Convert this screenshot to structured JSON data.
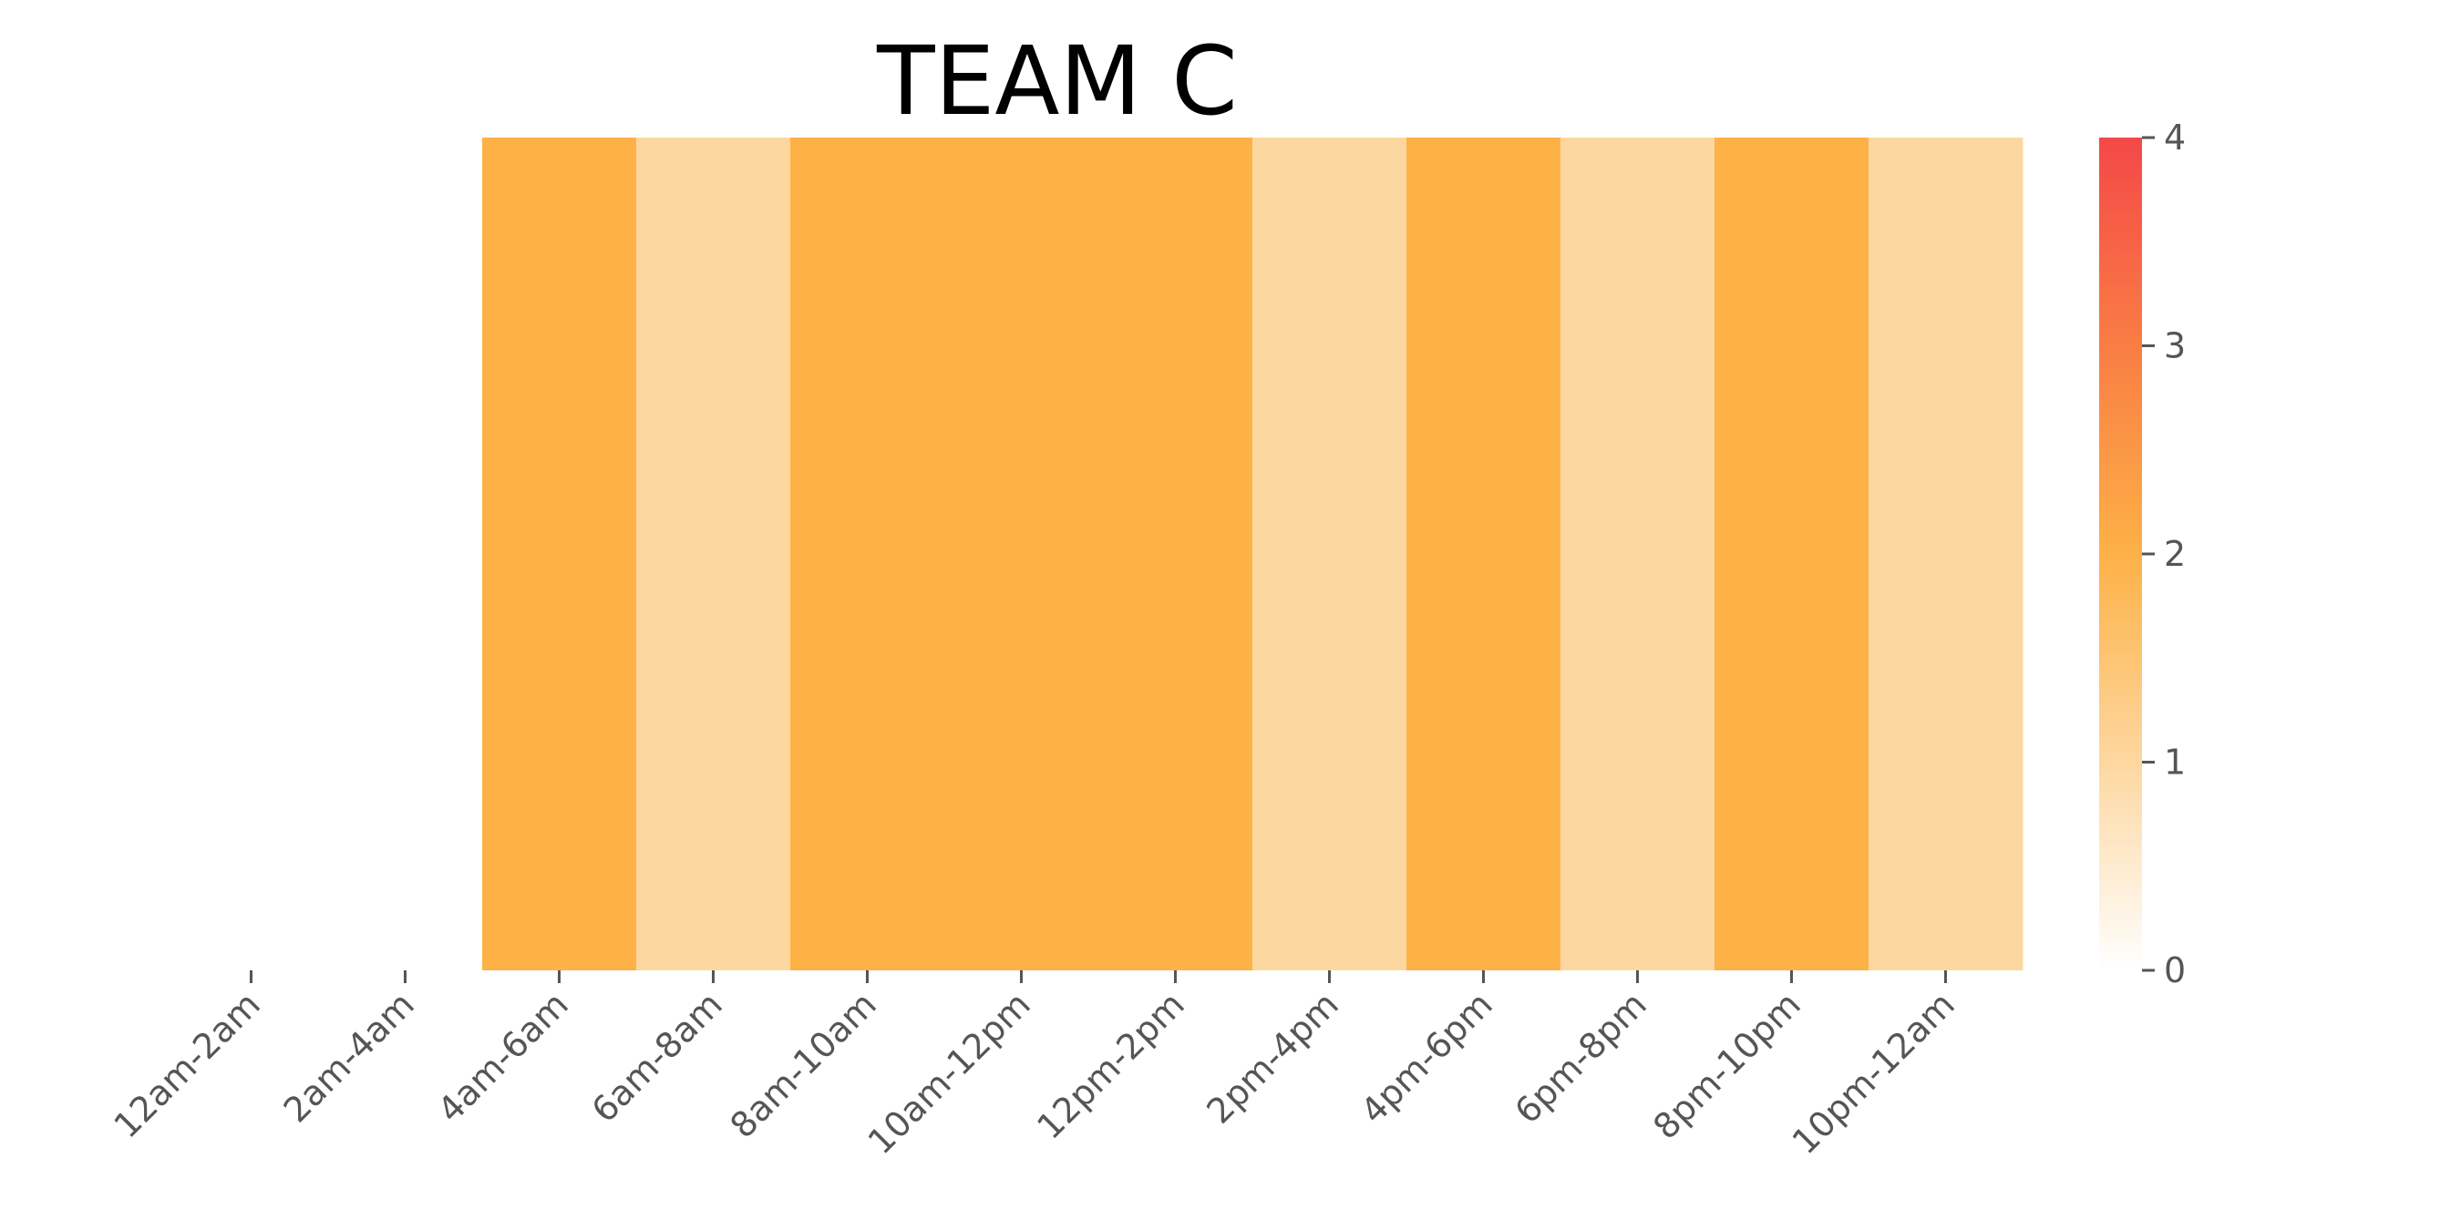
{
  "chart_data": {
    "type": "heatmap",
    "title": "TEAM C",
    "xlabel": "",
    "ylabel": "",
    "categories": [
      "12am-2am",
      "2am-4am",
      "4am-6am",
      "6am-8am",
      "8am-10am",
      "10am-12pm",
      "12pm-2pm",
      "2pm-4pm",
      "4pm-6pm",
      "6pm-8pm",
      "8pm-10pm",
      "10pm-12am"
    ],
    "values": [
      null,
      null,
      2,
      1,
      2,
      2,
      2,
      1,
      2,
      1,
      2,
      1
    ],
    "colorbar": {
      "range": [
        0,
        4
      ],
      "ticks": [
        "0",
        "1",
        "2",
        "3",
        "4"
      ],
      "colors": [
        "#ffffff",
        "#fdd7a0",
        "#fdb147",
        "#f97d44",
        "#f44848"
      ]
    },
    "grid": false,
    "legend": "none"
  }
}
